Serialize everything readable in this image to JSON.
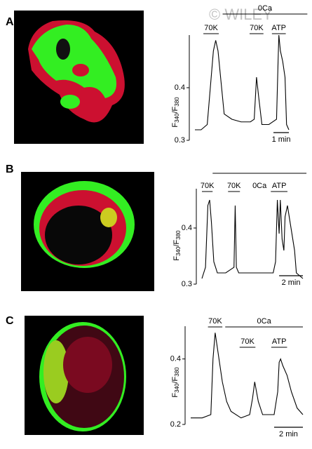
{
  "watermark": "© WILEY",
  "chart_data": [
    {
      "type": "line",
      "panel": "A",
      "ylabel": [
        "F",
        "340",
        "/F",
        "380"
      ],
      "x": [
        0,
        0.4,
        0.8,
        1.0,
        1.2,
        1.35,
        1.5,
        1.7,
        1.9,
        2.4,
        3.0,
        3.6,
        3.85,
        4.0,
        4.15,
        4.35,
        4.8,
        5.3,
        5.4,
        5.45,
        5.55,
        5.7,
        5.85,
        5.95,
        6.1
      ],
      "values": [
        0.32,
        0.32,
        0.33,
        0.4,
        0.47,
        0.49,
        0.47,
        0.41,
        0.35,
        0.34,
        0.335,
        0.335,
        0.34,
        0.42,
        0.38,
        0.33,
        0.33,
        0.34,
        0.45,
        0.5,
        0.47,
        0.45,
        0.42,
        0.33,
        0.32
      ],
      "xlim": [
        0,
        6.1
      ],
      "ylim": [
        0.3,
        0.5
      ],
      "yticks": [
        0.3,
        0.4
      ],
      "annotations": [
        {
          "label": "0Ca",
          "x": [
            1.8,
            7.3
          ]
        },
        {
          "label": "70K",
          "x": [
            0.55,
            1.55
          ]
        },
        {
          "label": "70K",
          "x": [
            3.55,
            4.45
          ]
        },
        {
          "label": "ATP",
          "x": [
            5.0,
            5.9
          ]
        }
      ],
      "scalebar": {
        "value": 1,
        "label": "1 min"
      }
    },
    {
      "type": "line",
      "panel": "B",
      "ylabel": [
        "F",
        "340",
        "/F",
        "380"
      ],
      "x": [
        0,
        0.3,
        0.5,
        0.65,
        0.8,
        1.0,
        1.3,
        2.0,
        2.7,
        2.8,
        2.9,
        3.1,
        4.5,
        6.0,
        6.2,
        6.35,
        6.5,
        6.6,
        6.75,
        6.9,
        7.0,
        7.2,
        7.5,
        7.8,
        7.95,
        8.5
      ],
      "values": [
        0.31,
        0.33,
        0.44,
        0.45,
        0.41,
        0.34,
        0.32,
        0.32,
        0.33,
        0.44,
        0.33,
        0.32,
        0.32,
        0.32,
        0.34,
        0.45,
        0.39,
        0.45,
        0.38,
        0.36,
        0.42,
        0.44,
        0.4,
        0.36,
        0.32,
        0.31
      ],
      "xlim": [
        0,
        8.5
      ],
      "ylim": [
        0.3,
        0.47
      ],
      "yticks": [
        0.3,
        0.4
      ],
      "annotations": [
        {
          "label": "0Ca",
          "x": [
            0.9,
            8.8
          ]
        },
        {
          "label": "70K",
          "x": [
            0,
            0.9
          ]
        },
        {
          "label": "70K",
          "x": [
            2.2,
            3.2
          ]
        },
        {
          "label": "ATP",
          "x": [
            5.8,
            7.2
          ]
        }
      ],
      "scalebar": {
        "value": 2,
        "label": "2 min"
      }
    },
    {
      "type": "line",
      "panel": "C",
      "ylabel": [
        "F",
        "340",
        "/F",
        "380"
      ],
      "x": [
        0,
        0.8,
        1.4,
        1.55,
        1.7,
        1.9,
        2.2,
        2.5,
        2.8,
        3.5,
        4.1,
        4.3,
        4.45,
        4.7,
        5.0,
        5.8,
        6.05,
        6.15,
        6.25,
        6.4,
        6.7,
        7.0,
        7.4,
        7.8
      ],
      "values": [
        0.22,
        0.22,
        0.23,
        0.4,
        0.48,
        0.42,
        0.33,
        0.27,
        0.24,
        0.22,
        0.23,
        0.28,
        0.33,
        0.27,
        0.23,
        0.23,
        0.3,
        0.39,
        0.4,
        0.38,
        0.35,
        0.3,
        0.25,
        0.23
      ],
      "xlim": [
        0,
        7.8
      ],
      "ylim": [
        0.2,
        0.5
      ],
      "yticks": [
        0.2,
        0.4
      ],
      "annotations": [
        {
          "label": "0Ca",
          "x": [
            2.4,
            7.8
          ]
        },
        {
          "label": "70K",
          "x": [
            1.2,
            2.2
          ]
        },
        {
          "label": "70K",
          "x": [
            3.4,
            4.5
          ]
        },
        {
          "label": "ATP",
          "x": [
            5.6,
            6.7
          ]
        }
      ],
      "scalebar": {
        "value": 2,
        "label": "2 min"
      }
    }
  ]
}
